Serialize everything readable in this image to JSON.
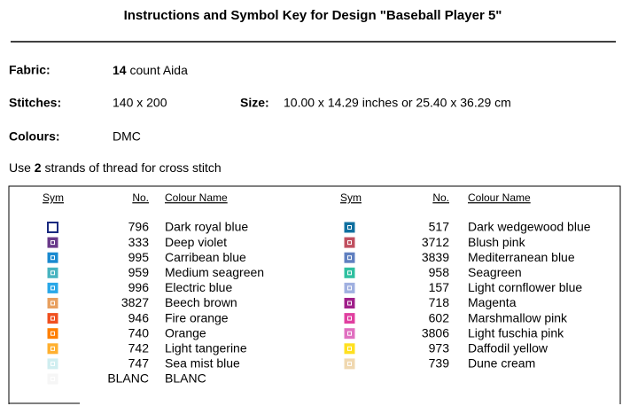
{
  "title": "Instructions and Symbol Key for Design \"Baseball Player 5\"",
  "fabric": {
    "label": "Fabric:",
    "count": "14",
    "type": "count Aida"
  },
  "stitches": {
    "label": "Stitches:",
    "value": "140 x 200"
  },
  "size": {
    "label": "Size:",
    "value": "10.00 x 14.29 inches or 25.40 x 36.29 cm"
  },
  "colours": {
    "label": "Colours:",
    "value": "DMC"
  },
  "strands": {
    "before": "Use",
    "count": "2",
    "after": "strands of thread for cross stitch"
  },
  "table": {
    "headers": [
      "Sym",
      "No.",
      "Colour Name"
    ],
    "left": [
      {
        "no": "796",
        "name": "Dark royal blue",
        "color": "#1a2a80"
      },
      {
        "no": "333",
        "name": "Deep violet",
        "color": "#6a3a8a"
      },
      {
        "no": "995",
        "name": "Carribean blue",
        "color": "#1a8ad0"
      },
      {
        "no": "959",
        "name": "Medium seagreen",
        "color": "#48b4c0"
      },
      {
        "no": "996",
        "name": "Electric blue",
        "color": "#2aa8e8"
      },
      {
        "no": "3827",
        "name": "Beech brown",
        "color": "#e8a060"
      },
      {
        "no": "946",
        "name": "Fire orange",
        "color": "#f05020"
      },
      {
        "no": "740",
        "name": "Orange",
        "color": "#ff8000"
      },
      {
        "no": "742",
        "name": "Light tangerine",
        "color": "#ffb030"
      },
      {
        "no": "747",
        "name": "Sea mist blue",
        "color": "#d0eef0"
      },
      {
        "no": "BLANC",
        "name": "BLANC",
        "color": "#f6f6f6"
      }
    ],
    "right": [
      {
        "no": "517",
        "name": "Dark wedgewood blue",
        "color": "#1070a0"
      },
      {
        "no": "3712",
        "name": "Blush pink",
        "color": "#c05060"
      },
      {
        "no": "3839",
        "name": "Mediterranean blue",
        "color": "#6080c0"
      },
      {
        "no": "958",
        "name": "Seagreen",
        "color": "#30c0a0"
      },
      {
        "no": "157",
        "name": "Light cornflower blue",
        "color": "#a0b0e0"
      },
      {
        "no": "718",
        "name": "Magenta",
        "color": "#a0208a"
      },
      {
        "no": "602",
        "name": "Marshmallow pink",
        "color": "#e040a0"
      },
      {
        "no": "3806",
        "name": "Light fuschia pink",
        "color": "#e070c0"
      },
      {
        "no": "973",
        "name": "Daffodil yellow",
        "color": "#ffe020"
      },
      {
        "no": "739",
        "name": "Dune cream",
        "color": "#f0d8b0"
      }
    ]
  }
}
